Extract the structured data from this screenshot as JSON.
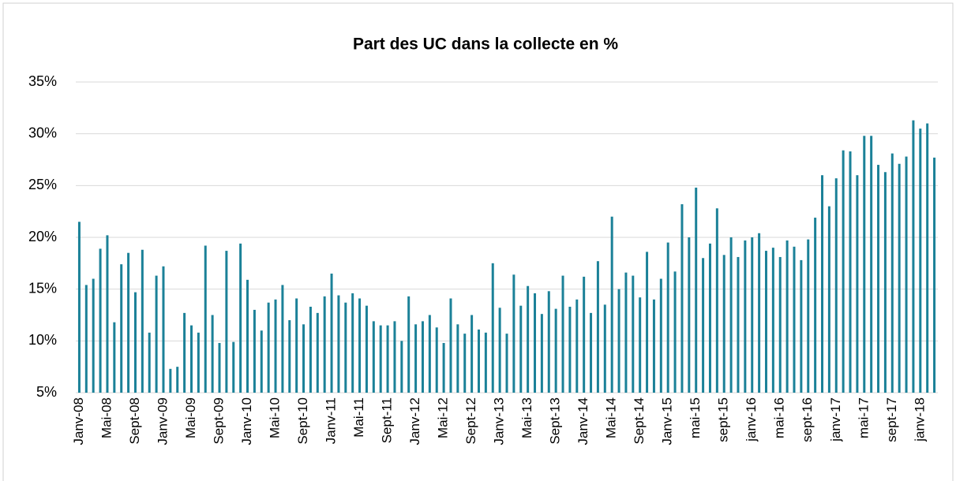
{
  "chart_data": {
    "type": "bar",
    "title": "Part des UC dans la collecte en %",
    "categories": [
      "Janv-08",
      null,
      null,
      null,
      "Mai-08",
      null,
      null,
      null,
      "Sept-08",
      null,
      null,
      null,
      "Janv-09",
      null,
      null,
      null,
      "Mai-09",
      null,
      null,
      null,
      "Sept-09",
      null,
      null,
      null,
      "Janv-10",
      null,
      null,
      null,
      "Mai-10",
      null,
      null,
      null,
      "Sept-10",
      null,
      null,
      null,
      "Janv-11",
      null,
      null,
      null,
      "Mai-11",
      null,
      null,
      null,
      "Sept-11",
      null,
      null,
      null,
      "Janv-12",
      null,
      null,
      null,
      "Mai-12",
      null,
      null,
      null,
      "Sept-12",
      null,
      null,
      null,
      "Janv-13",
      null,
      null,
      null,
      "Mai-13",
      null,
      null,
      null,
      "Sept-13",
      null,
      null,
      null,
      "Janv-14",
      null,
      null,
      null,
      "Mai-14",
      null,
      null,
      null,
      "Sept-14",
      null,
      null,
      null,
      "Janv-15",
      null,
      null,
      null,
      "mai-15",
      null,
      null,
      null,
      "sept-15",
      null,
      null,
      null,
      "janv-16",
      null,
      null,
      null,
      "mai-16",
      null,
      null,
      null,
      "sept-16",
      null,
      null,
      null,
      "janv-17",
      null,
      null,
      null,
      "mai-17",
      null,
      null,
      null,
      "sept-17",
      null,
      null,
      null,
      "janv-18",
      null,
      null
    ],
    "values": [
      21.5,
      15.4,
      16.0,
      18.9,
      20.2,
      11.8,
      17.4,
      18.5,
      14.7,
      18.8,
      10.8,
      16.3,
      17.2,
      7.3,
      7.5,
      12.7,
      11.5,
      10.8,
      19.2,
      12.5,
      9.8,
      18.7,
      9.9,
      19.4,
      15.9,
      13.0,
      11.0,
      13.7,
      14.0,
      15.4,
      12.0,
      14.1,
      11.6,
      13.3,
      12.7,
      14.3,
      16.5,
      14.4,
      13.7,
      14.6,
      14.1,
      13.4,
      11.9,
      11.5,
      11.5,
      11.9,
      10.0,
      14.3,
      11.6,
      11.9,
      12.5,
      11.3,
      9.8,
      14.1,
      11.6,
      10.7,
      12.5,
      11.1,
      10.8,
      17.5,
      13.2,
      10.7,
      16.4,
      13.4,
      15.3,
      14.6,
      12.6,
      14.8,
      13.1,
      16.3,
      13.3,
      14.0,
      16.2,
      12.7,
      17.7,
      13.5,
      22.0,
      15.0,
      16.6,
      16.3,
      14.2,
      18.6,
      14.0,
      16.0,
      19.5,
      16.7,
      23.2,
      20.0,
      24.8,
      18.0,
      19.4,
      22.8,
      18.3,
      20.0,
      18.1,
      19.7,
      20.0,
      20.4,
      18.7,
      19.0,
      18.1,
      19.7,
      19.1,
      17.8,
      19.8,
      21.9,
      26.0,
      23.0,
      25.7,
      28.4,
      28.3,
      26.0,
      29.8,
      29.8,
      27.0,
      26.3,
      28.1,
      27.1,
      27.8,
      31.3,
      30.5,
      31.0,
      27.7
    ],
    "color": "#1b8198",
    "ylim": [
      5,
      35
    ],
    "yticks": [
      {
        "value": 5,
        "label": "5%"
      },
      {
        "value": 10,
        "label": "10%"
      },
      {
        "value": 15,
        "label": "15%"
      },
      {
        "value": 20,
        "label": "20%"
      },
      {
        "value": 25,
        "label": "25%"
      },
      {
        "value": 30,
        "label": "30%"
      },
      {
        "value": 35,
        "label": "35%"
      }
    ],
    "grid": true
  }
}
